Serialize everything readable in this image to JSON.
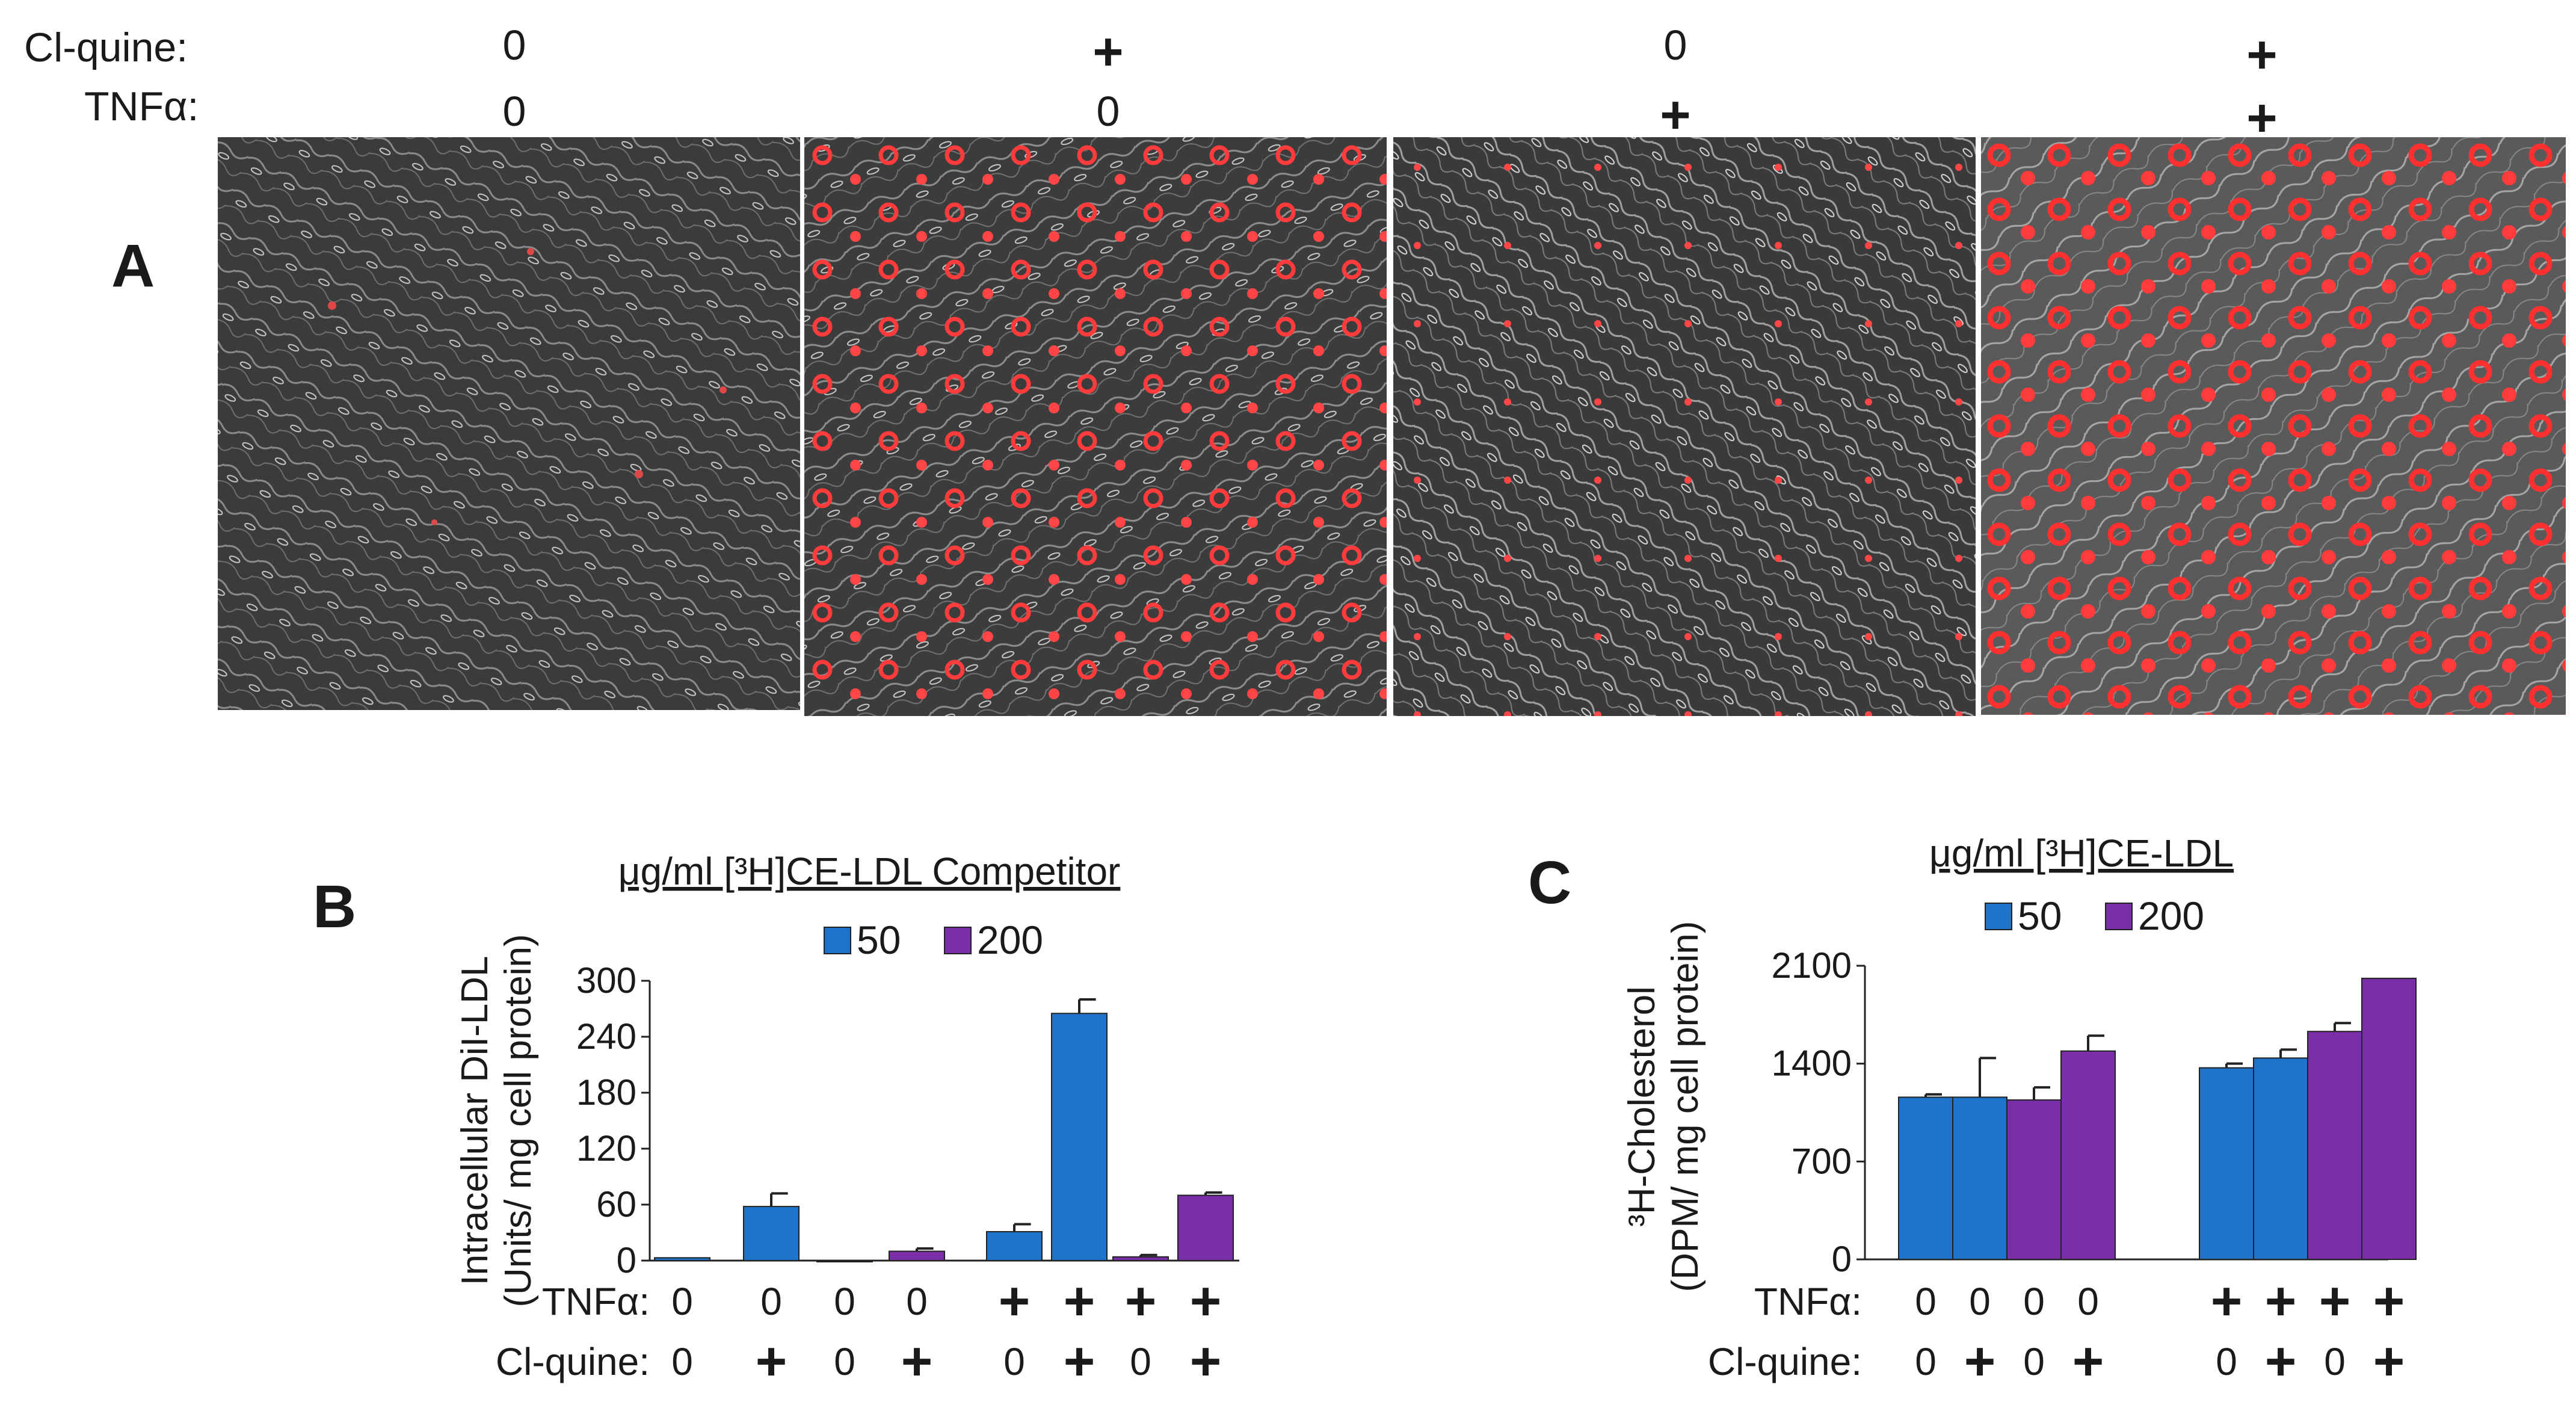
{
  "panel_a": {
    "letter": "A",
    "row_labels": {
      "clquine": "Cl-quine:",
      "tnfa": "TNFα:"
    },
    "conditions": [
      {
        "clquine": "0",
        "tnfa": "0"
      },
      {
        "clquine": "+",
        "tnfa": "0"
      },
      {
        "clquine": "0",
        "tnfa": "+"
      },
      {
        "clquine": "+",
        "tnfa": "+"
      }
    ]
  },
  "chart_data": [
    {
      "id": "B",
      "type": "bar",
      "panel_letter": "B",
      "legend_title": "μg/ml [³H]CE-LDL Competitor",
      "ylabel_line1": "Intracellular DiI-LDL",
      "ylabel_line2": "(Units/ mg cell protein)",
      "ylim": [
        0,
        300
      ],
      "yticks": [
        0,
        60,
        120,
        180,
        240,
        300
      ],
      "ytick_labels": [
        "0",
        "60",
        "120",
        "180",
        "240",
        "300"
      ],
      "series": [
        {
          "name": "50",
          "color": "#1f74c9"
        },
        {
          "name": "200",
          "color": "#7a2fa8"
        }
      ],
      "bars": [
        {
          "group": 0,
          "series": "50",
          "value": 3,
          "error": 0
        },
        {
          "group": 0,
          "series": "50",
          "value": 58,
          "error": 14
        },
        {
          "group": 0,
          "series": "200",
          "value": 0,
          "error": 0
        },
        {
          "group": 0,
          "series": "200",
          "value": 10,
          "error": 3
        },
        {
          "group": 1,
          "series": "50",
          "value": 31,
          "error": 8
        },
        {
          "group": 1,
          "series": "50",
          "value": 265,
          "error": 15
        },
        {
          "group": 1,
          "series": "200",
          "value": 4,
          "error": 2
        },
        {
          "group": 1,
          "series": "200",
          "value": 70,
          "error": 3
        }
      ],
      "row_labels": {
        "tnfa": "TNFα:",
        "clquine": "Cl-quine:"
      },
      "tnfa": [
        "0",
        "0",
        "0",
        "0",
        "+",
        "+",
        "+",
        "+"
      ],
      "clquine": [
        "0",
        "+",
        "0",
        "+",
        "0",
        "+",
        "0",
        "+"
      ]
    },
    {
      "id": "C",
      "type": "bar",
      "panel_letter": "C",
      "legend_title": "μg/ml [³H]CE-LDL",
      "ylabel_line1": "³H-Cholesterol",
      "ylabel_line2": "(DPM/ mg cell protein)",
      "ylim": [
        0,
        2100
      ],
      "yticks": [
        0,
        700,
        1400,
        2100
      ],
      "ytick_labels": [
        "0",
        "700",
        "1400",
        "2100"
      ],
      "series": [
        {
          "name": "50",
          "color": "#1f74c9"
        },
        {
          "name": "200",
          "color": "#7a2fa8"
        }
      ],
      "bars": [
        {
          "group": 0,
          "series": "50",
          "value": 1160,
          "error": 20
        },
        {
          "group": 0,
          "series": "50",
          "value": 1160,
          "error": 280
        },
        {
          "group": 0,
          "series": "200",
          "value": 1140,
          "error": 90
        },
        {
          "group": 0,
          "series": "200",
          "value": 1490,
          "error": 110
        },
        {
          "group": 1,
          "series": "50",
          "value": 1370,
          "error": 30
        },
        {
          "group": 1,
          "series": "50",
          "value": 1440,
          "error": 60
        },
        {
          "group": 1,
          "series": "200",
          "value": 1630,
          "error": 60
        },
        {
          "group": 1,
          "series": "200",
          "value": 2010,
          "error": 0
        }
      ],
      "row_labels": {
        "tnfa": "TNFα:",
        "clquine": "Cl-quine:"
      },
      "tnfa": [
        "0",
        "0",
        "0",
        "0",
        "+",
        "+",
        "+",
        "+"
      ],
      "clquine": [
        "0",
        "+",
        "0",
        "+",
        "0",
        "+",
        "0",
        "+"
      ]
    }
  ]
}
